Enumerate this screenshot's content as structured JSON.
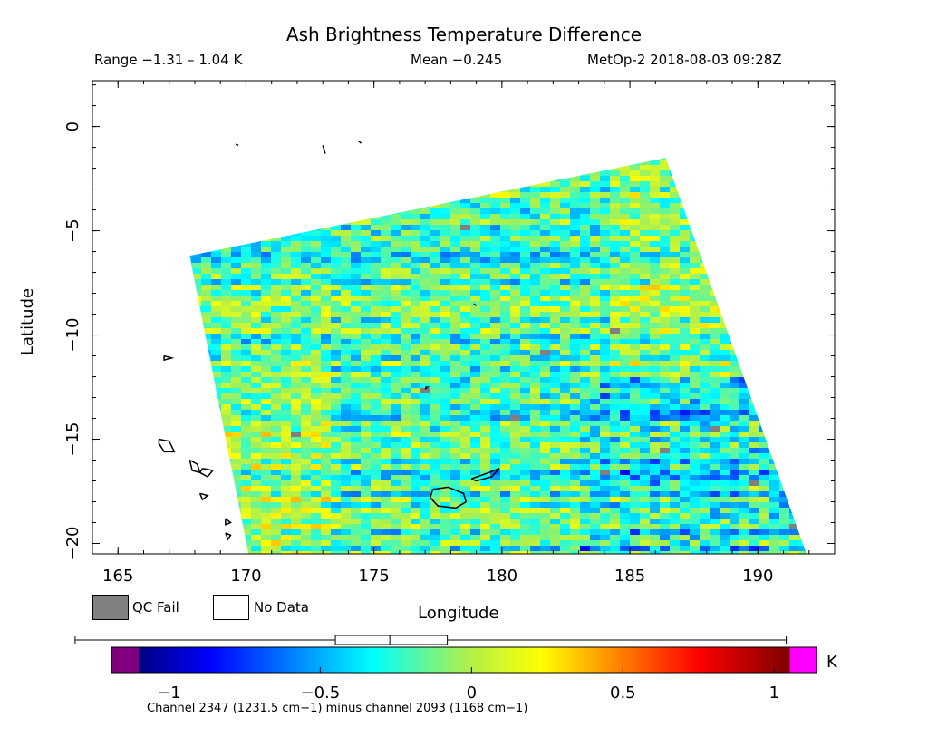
{
  "header": {
    "title": "Ash Brightness Temperature Difference",
    "range": "Range −1.31 – 1.04 K",
    "mean": "Mean −0.245",
    "satellite_time": "MetOp-2 2018-08-03 09:28Z"
  },
  "legend": {
    "qc_fail_label": "QC Fail",
    "qc_fail_color": "#808080",
    "no_data_label": "No Data",
    "no_data_color": "#ffffff"
  },
  "colorbar": {
    "unit": "K",
    "note": "Channel 2347 (1231.5 cm−1) minus channel 2093 (1168 cm−1)",
    "ticks": [
      "−1",
      "−0.5",
      "0",
      "0.5",
      "1"
    ],
    "under_color": "#800080",
    "over_color": "#ff00ff"
  },
  "chart_data": {
    "type": "heatmap",
    "title": "Ash Brightness Temperature Difference",
    "xlabel": "Longitude",
    "ylabel": "Latitude",
    "xlim": [
      164,
      193
    ],
    "ylim": [
      -20.5,
      2.2
    ],
    "x_ticks": [
      "165",
      "170",
      "175",
      "180",
      "185",
      "190"
    ],
    "y_ticks": [
      "0",
      "−5",
      "−10",
      "−15",
      "−20"
    ],
    "x_tick_values": [
      165,
      170,
      175,
      180,
      185,
      190
    ],
    "y_tick_values": [
      0,
      -5,
      -10,
      -15,
      -20
    ],
    "value_range": [
      -1.31,
      1.04
    ],
    "mean": -0.245,
    "colorbar_limits": [
      -1.1,
      1.05
    ],
    "swath_corners": [
      [
        167.8,
        -6.2
      ],
      [
        186.4,
        -1.5
      ],
      [
        191.9,
        -20.5
      ],
      [
        170.1,
        -20.5
      ]
    ],
    "box_whisker": {
      "whisker_low": -1.31,
      "q1": -0.45,
      "median": -0.27,
      "q3": -0.08,
      "whisker_high": 1.04
    },
    "coastlines": [
      {
        "name": "Fiji-Viti-Levu",
        "lonlat": [
          [
            177.3,
            -17.4
          ],
          [
            177.9,
            -17.3
          ],
          [
            178.5,
            -17.6
          ],
          [
            178.6,
            -18.0
          ],
          [
            178.2,
            -18.3
          ],
          [
            177.5,
            -18.2
          ],
          [
            177.2,
            -17.8
          ],
          [
            177.3,
            -17.4
          ]
        ]
      },
      {
        "name": "Fiji-Vanua-Levu",
        "lonlat": [
          [
            178.8,
            -16.9
          ],
          [
            179.5,
            -16.6
          ],
          [
            179.9,
            -16.4
          ],
          [
            179.6,
            -16.8
          ],
          [
            179.0,
            -17.0
          ],
          [
            178.8,
            -16.9
          ]
        ]
      },
      {
        "name": "Vanuatu-1",
        "lonlat": [
          [
            166.6,
            -15.0
          ],
          [
            167.0,
            -15.1
          ],
          [
            167.2,
            -15.6
          ],
          [
            166.8,
            -15.6
          ],
          [
            166.6,
            -15.2
          ],
          [
            166.6,
            -15.0
          ]
        ]
      },
      {
        "name": "Vanuatu-2",
        "lonlat": [
          [
            167.8,
            -16.0
          ],
          [
            168.1,
            -16.2
          ],
          [
            168.2,
            -16.6
          ],
          [
            167.9,
            -16.5
          ],
          [
            167.8,
            -16.0
          ]
        ]
      },
      {
        "name": "Vanuatu-3",
        "lonlat": [
          [
            168.3,
            -16.4
          ],
          [
            168.7,
            -16.5
          ],
          [
            168.5,
            -16.8
          ],
          [
            168.2,
            -16.6
          ],
          [
            168.3,
            -16.4
          ]
        ]
      },
      {
        "name": "Vanuatu-4",
        "lonlat": [
          [
            168.2,
            -17.6
          ],
          [
            168.5,
            -17.7
          ],
          [
            168.3,
            -17.9
          ],
          [
            168.2,
            -17.6
          ]
        ]
      },
      {
        "name": "Vanuatu-5",
        "lonlat": [
          [
            169.2,
            -18.8
          ],
          [
            169.4,
            -19.0
          ],
          [
            169.2,
            -19.1
          ],
          [
            169.2,
            -18.8
          ]
        ]
      },
      {
        "name": "Vanuatu-6",
        "lonlat": [
          [
            169.2,
            -19.5
          ],
          [
            169.4,
            -19.6
          ],
          [
            169.3,
            -19.8
          ],
          [
            169.2,
            -19.5
          ]
        ]
      },
      {
        "name": "Rotuma",
        "lonlat": [
          [
            177.0,
            -12.5
          ],
          [
            177.1,
            -12.5
          ],
          [
            177.0,
            -12.6
          ]
        ]
      },
      {
        "name": "NCal-islet",
        "lonlat": [
          [
            166.8,
            -11.0
          ],
          [
            167.1,
            -11.1
          ],
          [
            166.8,
            -11.2
          ],
          [
            166.8,
            -11.0
          ]
        ]
      },
      {
        "name": "Tuvalu-1",
        "lonlat": [
          [
            173.0,
            -0.9
          ],
          [
            173.1,
            -1.3
          ]
        ]
      },
      {
        "name": "Tuvalu-2",
        "lonlat": [
          [
            169.6,
            -0.85
          ],
          [
            169.7,
            -0.9
          ]
        ]
      },
      {
        "name": "Tuvalu-3",
        "lonlat": [
          [
            174.4,
            -0.7
          ],
          [
            174.5,
            -0.8
          ]
        ]
      },
      {
        "name": "Wallis",
        "lonlat": [
          [
            178.9,
            -8.5
          ],
          [
            179.0,
            -8.6
          ]
        ]
      }
    ]
  }
}
